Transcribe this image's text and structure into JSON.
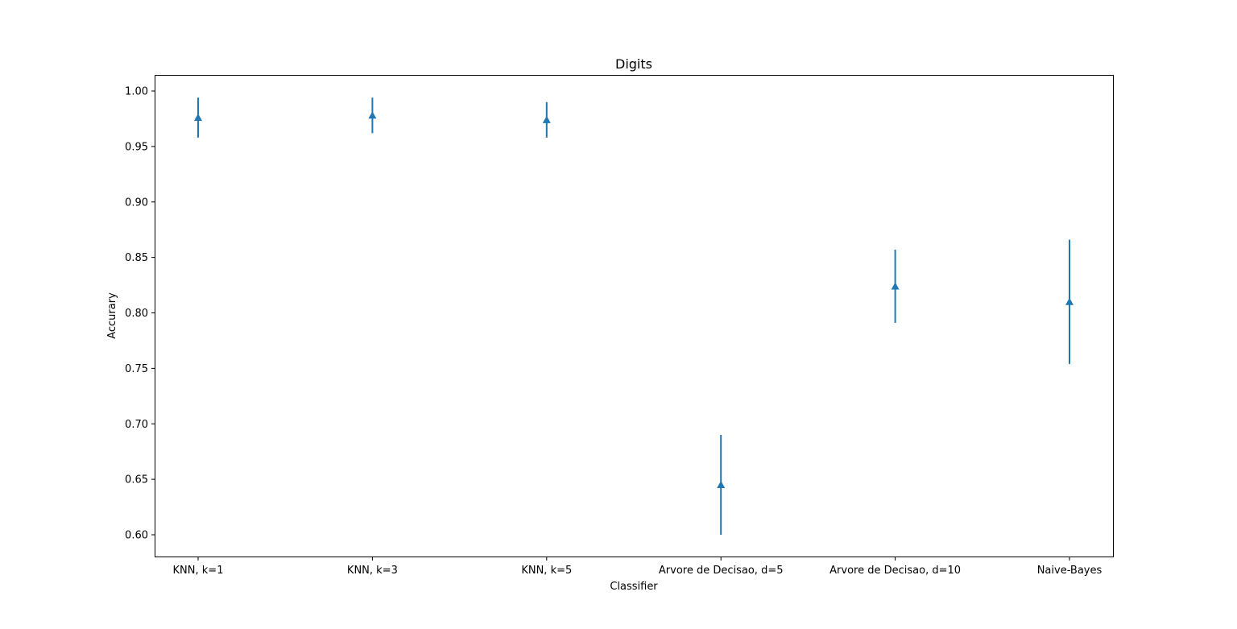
{
  "chart_data": {
    "type": "errorbar",
    "title": "Digits",
    "xlabel": "Classifier",
    "ylabel": "Accurary",
    "categories": [
      "KNN, k=1",
      "KNN, k=3",
      "KNN, k=5",
      "Arvore de Decisao, d=5",
      "Arvore de Decisao, d=10",
      "Naive-Bayes"
    ],
    "values": [
      0.976,
      0.978,
      0.974,
      0.645,
      0.824,
      0.81
    ],
    "errors": [
      0.018,
      0.016,
      0.016,
      0.045,
      0.033,
      0.056
    ],
    "ylim": [
      0.58,
      1.015
    ],
    "yticks": [
      "0.60",
      "0.65",
      "0.70",
      "0.75",
      "0.80",
      "0.85",
      "0.90",
      "0.95",
      "1.00"
    ],
    "marker": "triangle-up",
    "color": "#1f77b4",
    "grid": false,
    "legend": "none"
  }
}
